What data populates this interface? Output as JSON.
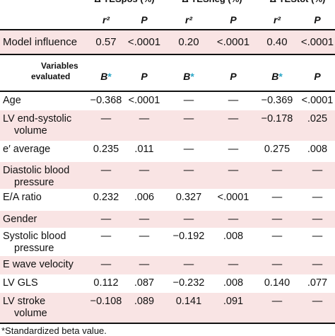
{
  "table": {
    "top_headers": [
      {
        "symbol": "Δ",
        "label": "TESpos (%)"
      },
      {
        "symbol": "Δ",
        "label": "TESneg (%)"
      },
      {
        "symbol": "Δ",
        "label": "TEStot (%)"
      }
    ],
    "stat_headers": [
      "r²",
      "P",
      "r²",
      "P",
      "r²",
      "P"
    ],
    "model_influence": {
      "label": "Model influence",
      "values": [
        "0.57",
        "<.0001",
        "0.20",
        "<.0001",
        "0.40",
        "<.0001"
      ]
    },
    "variables_header": {
      "line1": "Variables",
      "line2": "evaluated",
      "coef_label": "B",
      "star": "*",
      "p_label": "P"
    },
    "rows": [
      {
        "label": [
          "Age"
        ],
        "values": [
          "−0.368",
          "<.0001",
          "—",
          "—",
          "−0.369",
          "<.0001"
        ]
      },
      {
        "label": [
          "LV end-systolic",
          "volume"
        ],
        "values": [
          "—",
          "—",
          "—",
          "—",
          "−0.178",
          ".025"
        ]
      },
      {
        "label": [
          "e′ average"
        ],
        "values": [
          "0.235",
          ".011",
          "—",
          "—",
          "0.275",
          ".008"
        ]
      },
      {
        "label": [
          "Diastolic blood",
          "pressure"
        ],
        "values": [
          "—",
          "—",
          "—",
          "—",
          "—",
          "—"
        ]
      },
      {
        "label": [
          "E/A ratio"
        ],
        "values": [
          "0.232",
          ".006",
          "0.327",
          "<.0001",
          "—",
          "—"
        ]
      },
      {
        "label": [
          "Gender"
        ],
        "values": [
          "—",
          "—",
          "—",
          "—",
          "—",
          "—"
        ]
      },
      {
        "label": [
          "Systolic blood",
          "pressure"
        ],
        "values": [
          "—",
          "—",
          "−0.192",
          ".008",
          "—",
          "—"
        ]
      },
      {
        "label": [
          "E wave velocity"
        ],
        "values": [
          "—",
          "—",
          "—",
          "—",
          "—",
          "—"
        ]
      },
      {
        "label": [
          "LV GLS"
        ],
        "values": [
          "0.112",
          ".087",
          "−0.232",
          ".008",
          "0.140",
          ".077"
        ]
      },
      {
        "label": [
          "LV stroke",
          "volume"
        ],
        "values": [
          "−0.108",
          ".089",
          "0.141",
          ".091",
          "—",
          "—"
        ]
      }
    ],
    "footnote": "*Standardized beta value."
  },
  "colors": {
    "pink_row": "#f9e4e4",
    "star": "#2aa6c7",
    "rule": "#111111"
  }
}
